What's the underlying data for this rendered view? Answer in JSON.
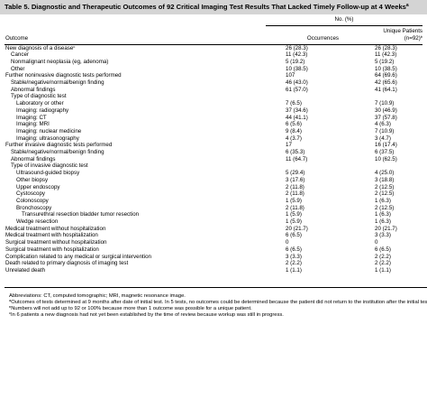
{
  "title": "Table 5. Diagnostic and Therapeutic Outcomes of 92 Critical Imaging Test Results That Lacked Timely Follow-up at 4 Weeks",
  "title_sup": "a",
  "header": {
    "group_label": "No. (%)",
    "col_outcome": "Outcome",
    "col_occ": "Occurrences",
    "col_unique_line1": "Unique Patients",
    "col_unique_line2": "(n=92)",
    "col_unique_sup": "b"
  },
  "rows": [
    {
      "label": "New diagnosis of a disease",
      "sup": "c",
      "level": 0,
      "occ": "26 (28.3)",
      "uniq": "26 (28.3)"
    },
    {
      "label": "Cancer",
      "level": 1,
      "occ": "11 (42.3)",
      "uniq": "11 (42.3)"
    },
    {
      "label": "Nonmalignant neoplasia (eg, adenoma)",
      "level": 1,
      "occ": "5 (19.2)",
      "uniq": "5 (19.2)"
    },
    {
      "label": "Other",
      "level": 1,
      "occ": "10 (38.5)",
      "uniq": "10 (38.5)"
    },
    {
      "label": "Further noninvasive diagnostic tests performed",
      "level": 0,
      "occ": "107",
      "uniq": "64 (69.6)"
    },
    {
      "label": "Stable/negative/normal/benign finding",
      "level": 1,
      "occ": "46 (43.0)",
      "uniq": "42 (65.6)"
    },
    {
      "label": "Abnormal findings",
      "level": 1,
      "occ": "61 (57.0)",
      "uniq": "41 (64.1)"
    },
    {
      "label": "Type of diagnostic test",
      "level": 1,
      "occ": "",
      "uniq": ""
    },
    {
      "label": "Laboratory or other",
      "level": 2,
      "occ": "7 (6.5)",
      "uniq": "7 (10.9)"
    },
    {
      "label": "Imaging: radiography",
      "level": 2,
      "occ": "37 (34.6)",
      "uniq": "30 (46.9)"
    },
    {
      "label": "Imaging: CT",
      "level": 2,
      "occ": "44 (41.1)",
      "uniq": "37 (57.8)"
    },
    {
      "label": "Imaging: MRI",
      "level": 2,
      "occ": "6 (5.6)",
      "uniq": "4 (6.3)"
    },
    {
      "label": "Imaging: nuclear medicine",
      "level": 2,
      "occ": "9 (8.4)",
      "uniq": "7 (10.9)"
    },
    {
      "label": "Imaging: ultrasonography",
      "level": 2,
      "occ": "4 (3.7)",
      "uniq": "3 (4.7)"
    },
    {
      "label": "Further invasive diagnostic tests performed",
      "level": 0,
      "occ": "17",
      "uniq": "16 (17.4)"
    },
    {
      "label": "Stable/negative/normal/benign finding",
      "level": 1,
      "occ": "6 (35.3)",
      "uniq": "6 (37.5)"
    },
    {
      "label": "Abnormal findings",
      "level": 1,
      "occ": "11 (64.7)",
      "uniq": "10 (62.5)"
    },
    {
      "label": "Type of invasive diagnostic test",
      "level": 1,
      "occ": "",
      "uniq": ""
    },
    {
      "label": "Ultrasound-guided biopsy",
      "level": 2,
      "occ": "5 (29.4)",
      "uniq": "4 (25.0)"
    },
    {
      "label": "Other biopsy",
      "level": 2,
      "occ": "3 (17.6)",
      "uniq": "3 (18.8)"
    },
    {
      "label": "Upper endoscopy",
      "level": 2,
      "occ": "2 (11.8)",
      "uniq": "2 (12.5)"
    },
    {
      "label": "Cystoscopy",
      "level": 2,
      "occ": "2 (11.8)",
      "uniq": "2 (12.5)"
    },
    {
      "label": "Colonoscopy",
      "level": 2,
      "occ": "1 (5.9)",
      "uniq": "1 (6.3)"
    },
    {
      "label": "Bronchoscopy",
      "level": 2,
      "occ": "2 (11.8)",
      "uniq": "2 (12.5)"
    },
    {
      "label": "Transurethral resection bladder tumor resection",
      "level": 3,
      "occ": "1 (5.9)",
      "uniq": "1 (6.3)"
    },
    {
      "label": "Wedge resection",
      "level": 2,
      "occ": "1 (5.9)",
      "uniq": "1 (6.3)"
    },
    {
      "label": "Medical treatment without hospitalization",
      "level": 0,
      "occ": "20 (21.7)",
      "uniq": "20 (21.7)"
    },
    {
      "label": "Medical treatment with hospitalization",
      "level": 0,
      "occ": "6 (6.5)",
      "uniq": "3 (3.3)"
    },
    {
      "label": "Surgical treatment without hospitalization",
      "level": 0,
      "occ": "0",
      "uniq": "0"
    },
    {
      "label": "Surgical treatment with hospitalization",
      "level": 0,
      "occ": "6 (6.5)",
      "uniq": "6 (6.5)"
    },
    {
      "label": "Complication related to any medical or surgical intervention",
      "level": 0,
      "occ": "3 (3.3)",
      "uniq": "2 (2.2)"
    },
    {
      "label": "Death related to primary diagnosis of imaging test",
      "level": 0,
      "occ": "2 (2.2)",
      "uniq": "2 (2.2)"
    },
    {
      "label": "Unrelated death",
      "level": 0,
      "occ": "1 (1.1)",
      "uniq": "1 (1.1)"
    }
  ],
  "footnotes": [
    {
      "sup": "",
      "text": "Abbreviations: CT, computed tomographic; MRI, magnetic resonance image."
    },
    {
      "sup": "a",
      "text": "Outcomes of tests determined at 9 months after date of initial test. In 5 tests, no outcomes could be determined because the patient did not return to the institution after the initial test."
    },
    {
      "sup": "b",
      "text": "Numbers will not add up to 92 or 100% because more than 1 outcome was possible for a unique patient."
    },
    {
      "sup": "c",
      "text": "In 6 patients a new diagnosis had not yet been established by the time of review because workup was still in progress."
    }
  ]
}
